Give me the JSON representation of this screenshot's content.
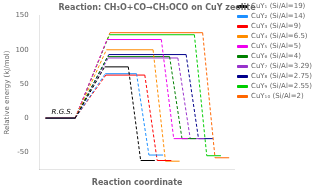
{
  "chart_data": {
    "type": "line",
    "title": "Reaction: CH₃O+CO→CH₃OCO on CuY zeolite",
    "xlabel": "Reaction coordinate",
    "ylabel": "Relative energy (kJ/mol)",
    "ylim": [
      -75,
      150
    ],
    "yticks": [
      -50,
      0,
      50,
      100,
      150
    ],
    "grid": false,
    "legend": "upper right",
    "tick_labels": "y",
    "annotations": [
      "R.G.S."
    ],
    "series": [
      {
        "name": "CuY₁ (Si/Al=19)",
        "color": "#000000",
        "values": [
          0,
          75,
          -62
        ]
      },
      {
        "name": "CuY₂ (Si/Al=14)",
        "color": "#1e90ff",
        "values": [
          0,
          65,
          -54
        ]
      },
      {
        "name": "CuY₃ (Si/Al=9)",
        "color": "#ff0000",
        "values": [
          0,
          63,
          -62
        ]
      },
      {
        "name": "CuY₄ (Si/Al=6.5)",
        "color": "#ff8c00",
        "values": [
          0,
          100,
          -63
        ]
      },
      {
        "name": "CuY₅ (Si/Al=5)",
        "color": "#ee00ee",
        "values": [
          0,
          115,
          -30
        ]
      },
      {
        "name": "CuY₆ (Si/Al=4)",
        "color": "#008000",
        "values": [
          0,
          90,
          -30
        ]
      },
      {
        "name": "CuY₇ (Si/Al=3.29)",
        "color": "#9932cc",
        "values": [
          0,
          88,
          -30
        ]
      },
      {
        "name": "CuY₈ (Si/Al=2.75)",
        "color": "#00008b",
        "values": [
          0,
          93,
          -30
        ]
      },
      {
        "name": "CuY₉ (Si/Al=2.55)",
        "color": "#00cc00",
        "values": [
          0,
          122,
          -55
        ]
      },
      {
        "name": "CuY₁₀ (Si/Al=2)",
        "color": "#ff6600",
        "values": [
          0,
          125,
          -58
        ]
      }
    ]
  }
}
